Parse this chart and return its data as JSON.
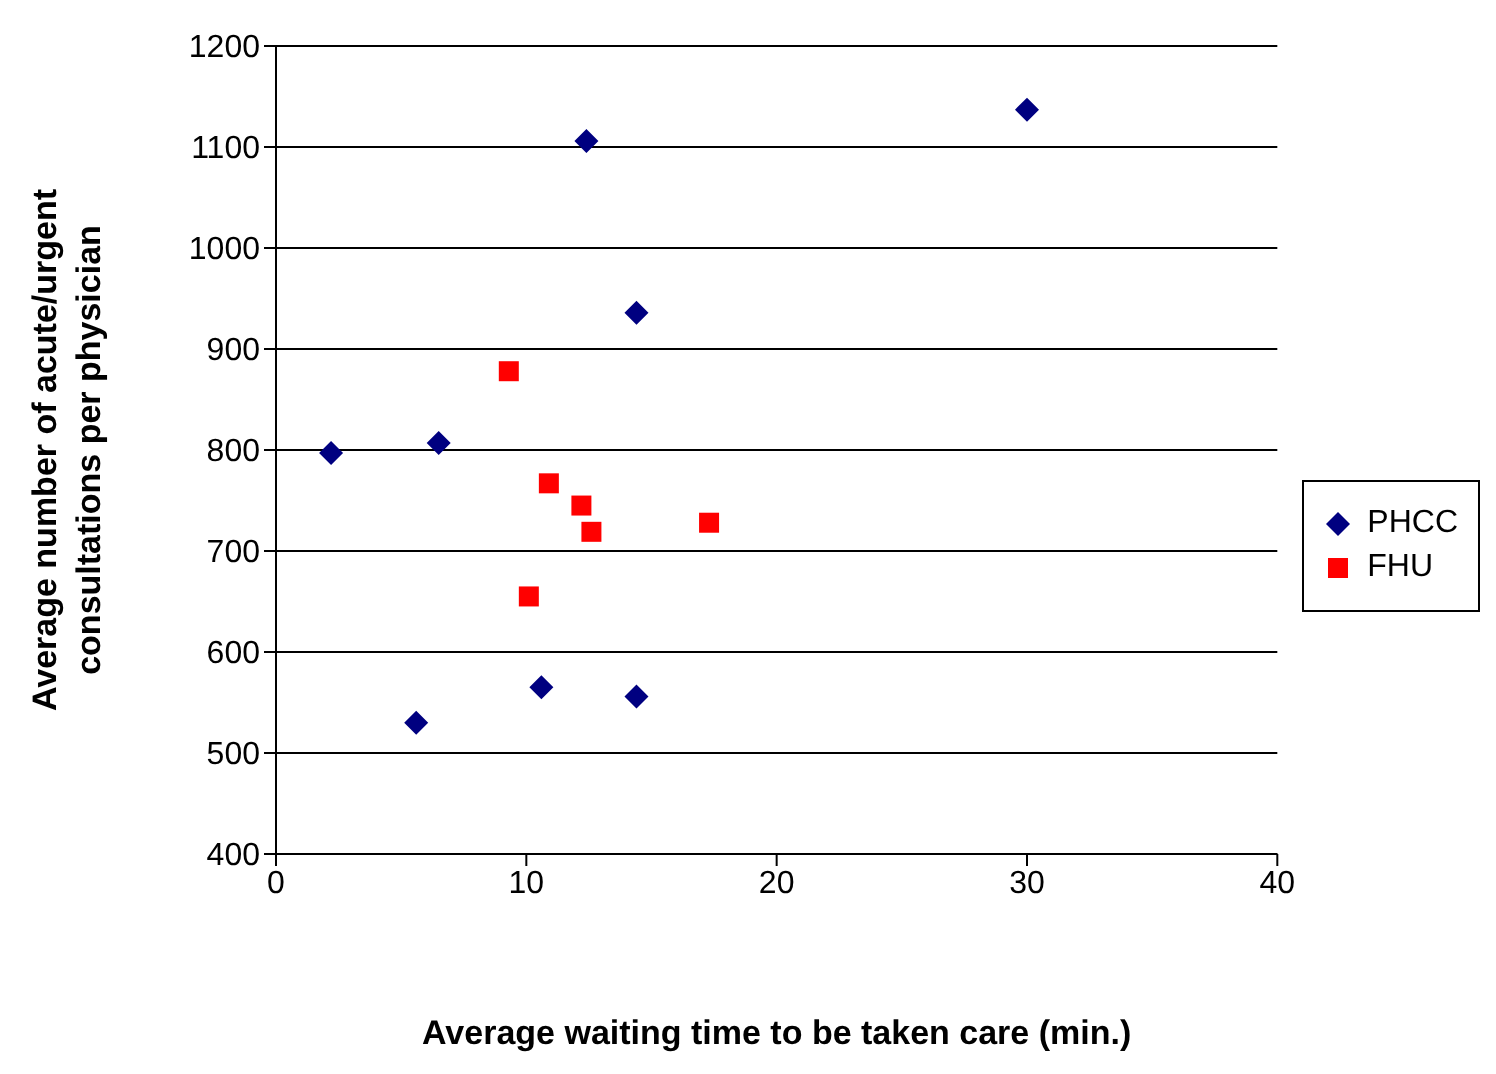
{
  "chart_data": {
    "type": "scatter",
    "xlabel": "Average waiting time to be taken care (min.)",
    "ylabel": "Average number of acute/urgent consultations per physician",
    "xlim": [
      0,
      40
    ],
    "xticks": [
      0,
      10,
      20,
      30,
      40
    ],
    "ylim": [
      400,
      1200
    ],
    "yticks": [
      400,
      500,
      600,
      700,
      800,
      900,
      1000,
      1100,
      1200
    ],
    "grid": "y",
    "legend": "right",
    "series": [
      {
        "name": "PHCC",
        "color": "#000080",
        "marker": "diamond",
        "x": [
          12.4,
          30,
          14.4,
          2.2,
          6.5,
          5.6,
          10.6,
          14.4
        ],
        "values": [
          1106,
          1137,
          936,
          797,
          807,
          530,
          565,
          556
        ]
      },
      {
        "name": "FHU",
        "color": "#ff0000",
        "marker": "square",
        "x": [
          9.3,
          10.9,
          12.2,
          12.6,
          17.3,
          10.1
        ],
        "values": [
          878,
          767,
          745,
          719,
          728,
          655
        ]
      }
    ]
  }
}
